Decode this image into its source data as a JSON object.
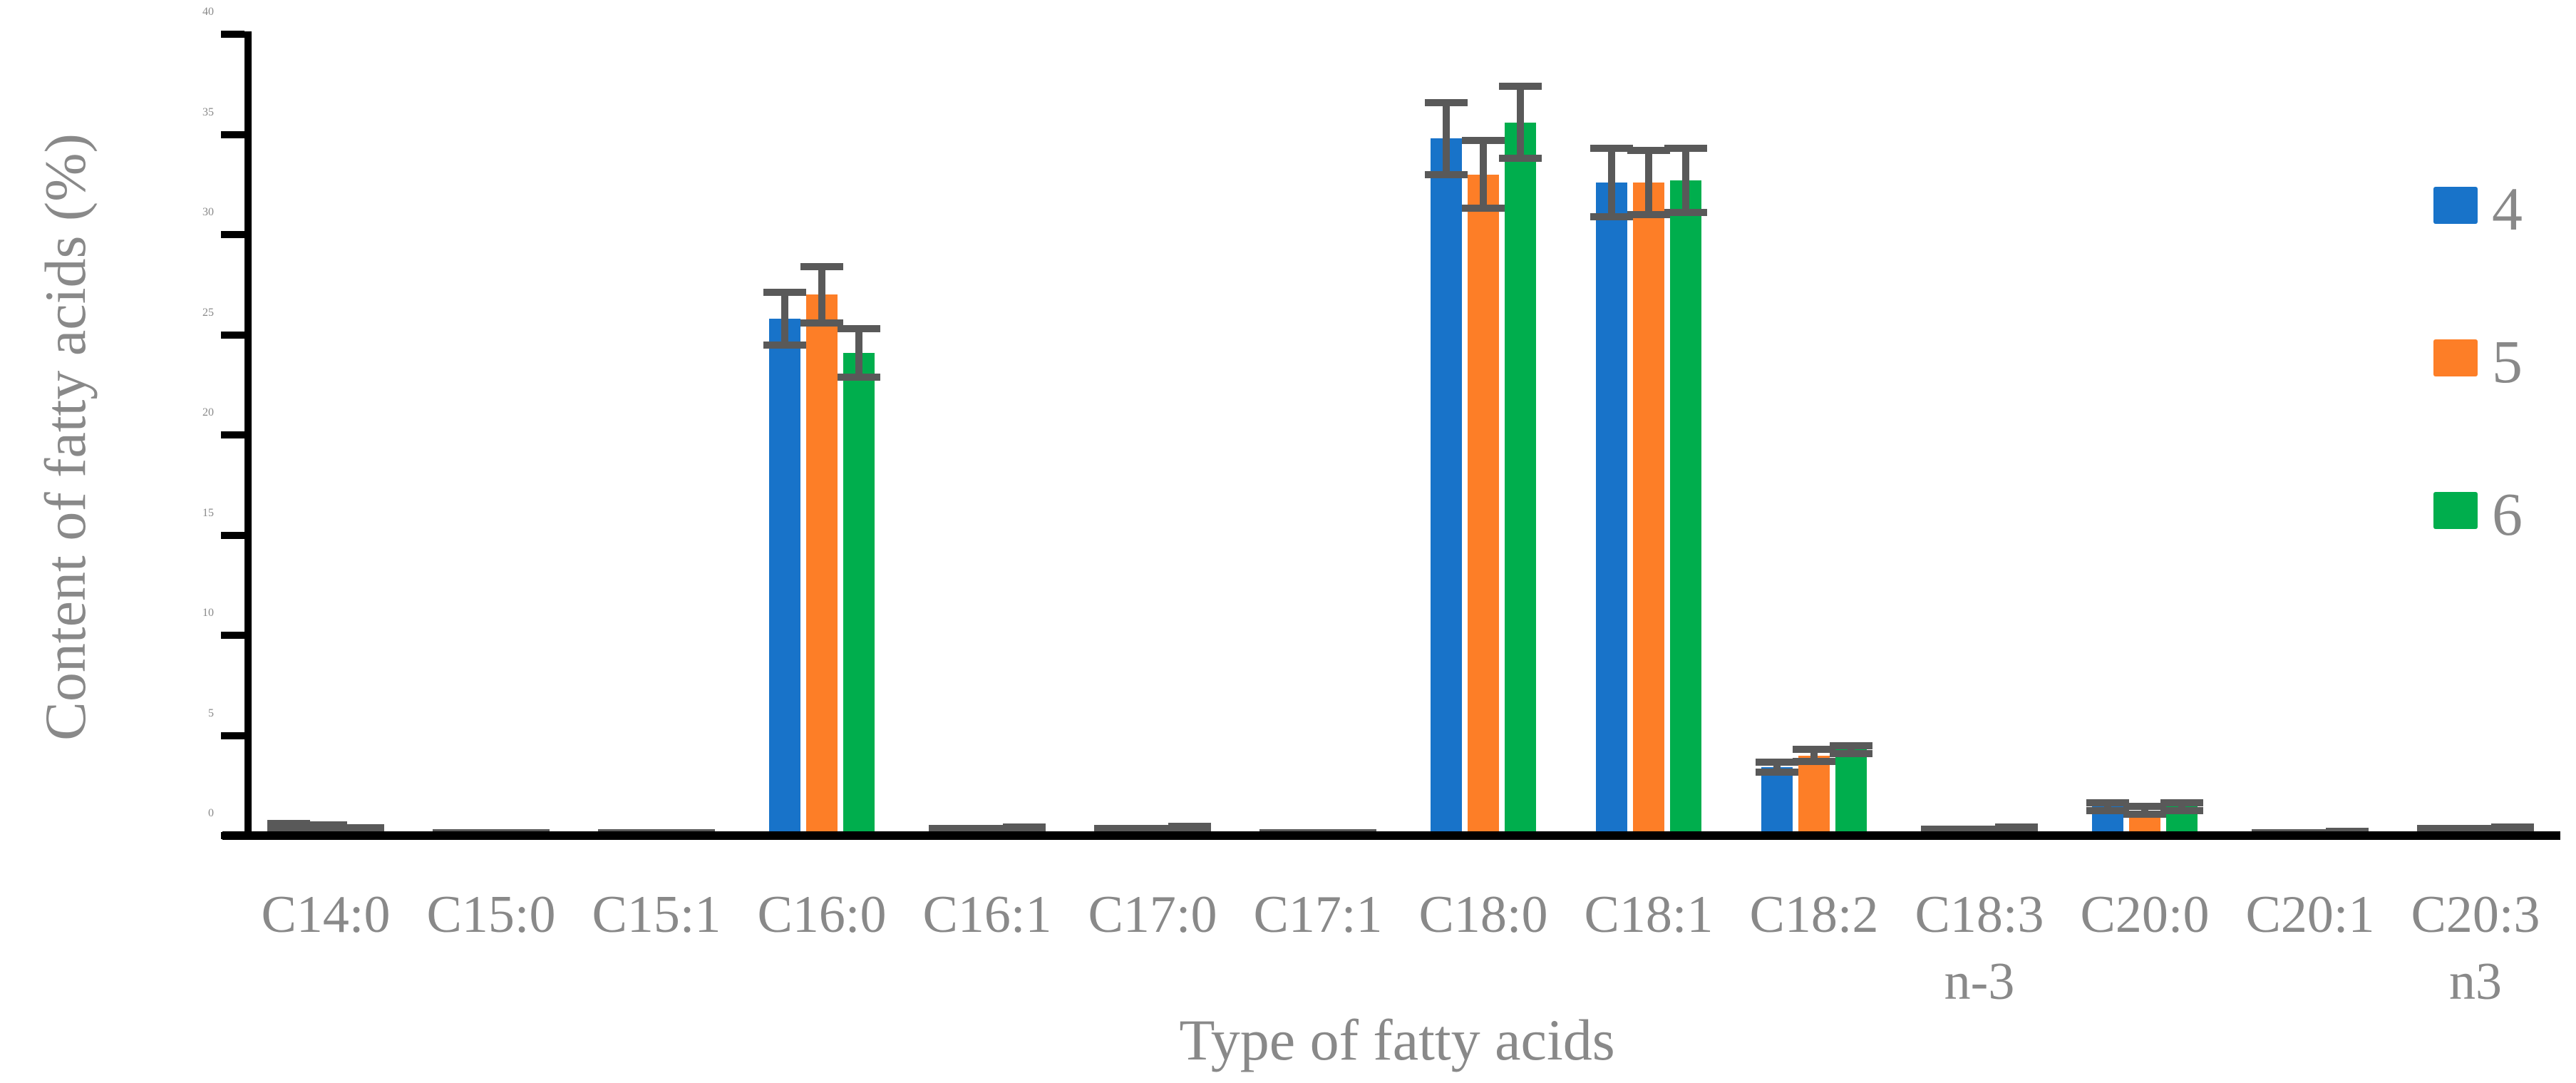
{
  "chart_data": {
    "type": "bar",
    "title": "",
    "xlabel": "Type of fatty acids",
    "ylabel": "Content of fatty acids (%)",
    "ylim": [
      0,
      40
    ],
    "ytick_step": 5,
    "ytick_labels": [
      "0",
      "5",
      "10",
      "15",
      "20",
      "25",
      "30",
      "35",
      "40"
    ],
    "grid": false,
    "legend_position": "right",
    "error_bars": true,
    "categories": [
      {
        "line1": "C14:0",
        "line2": ""
      },
      {
        "line1": "C15:0",
        "line2": ""
      },
      {
        "line1": "C15:1",
        "line2": ""
      },
      {
        "line1": "C16:0",
        "line2": ""
      },
      {
        "line1": "C16:1",
        "line2": ""
      },
      {
        "line1": "C17:0",
        "line2": ""
      },
      {
        "line1": "C17:1",
        "line2": ""
      },
      {
        "line1": "C18:0",
        "line2": ""
      },
      {
        "line1": "C18:1",
        "line2": ""
      },
      {
        "line1": "C18:2",
        "line2": ""
      },
      {
        "line1": "C18:3",
        "line2": "n-3"
      },
      {
        "line1": "C20:0",
        "line2": ""
      },
      {
        "line1": "C20:1",
        "line2": ""
      },
      {
        "line1": "C20:3",
        "line2": "n3"
      }
    ],
    "series": [
      {
        "name": "4",
        "color": "#1873C9",
        "values": [
          0.45,
          0.05,
          0.05,
          25.8,
          0.3,
          0.3,
          0.05,
          34.8,
          32.6,
          3.4,
          0.25,
          1.45,
          0.1,
          0.3
        ],
        "errors": [
          0.15,
          0.03,
          0.03,
          1.3,
          0.06,
          0.06,
          0.03,
          1.8,
          1.7,
          0.25,
          0.06,
          0.2,
          0.04,
          0.06
        ]
      },
      {
        "name": "5",
        "color": "#FD7E27",
        "values": [
          0.4,
          0.05,
          0.05,
          27.0,
          0.3,
          0.3,
          0.05,
          33.0,
          32.6,
          4.0,
          0.25,
          1.25,
          0.1,
          0.3
        ],
        "errors": [
          0.15,
          0.03,
          0.03,
          1.4,
          0.06,
          0.06,
          0.03,
          1.7,
          1.6,
          0.3,
          0.06,
          0.2,
          0.04,
          0.06
        ]
      },
      {
        "name": "6",
        "color": "#00AE4D",
        "values": [
          0.3,
          0.05,
          0.05,
          24.1,
          0.35,
          0.4,
          0.05,
          35.6,
          32.7,
          4.3,
          0.35,
          1.45,
          0.15,
          0.35
        ],
        "errors": [
          0.1,
          0.03,
          0.03,
          1.2,
          0.06,
          0.08,
          0.03,
          1.8,
          1.6,
          0.2,
          0.08,
          0.2,
          0.05,
          0.08
        ]
      }
    ]
  },
  "legend": {
    "items": [
      {
        "label": "4",
        "color": "#1873C9"
      },
      {
        "label": "5",
        "color": "#FD7E27"
      },
      {
        "label": "6",
        "color": "#00AE4D"
      }
    ]
  },
  "colors": {
    "error_bar": "#595959",
    "axis": "#000000",
    "label_text": "#898989",
    "background": "#ffffff"
  }
}
